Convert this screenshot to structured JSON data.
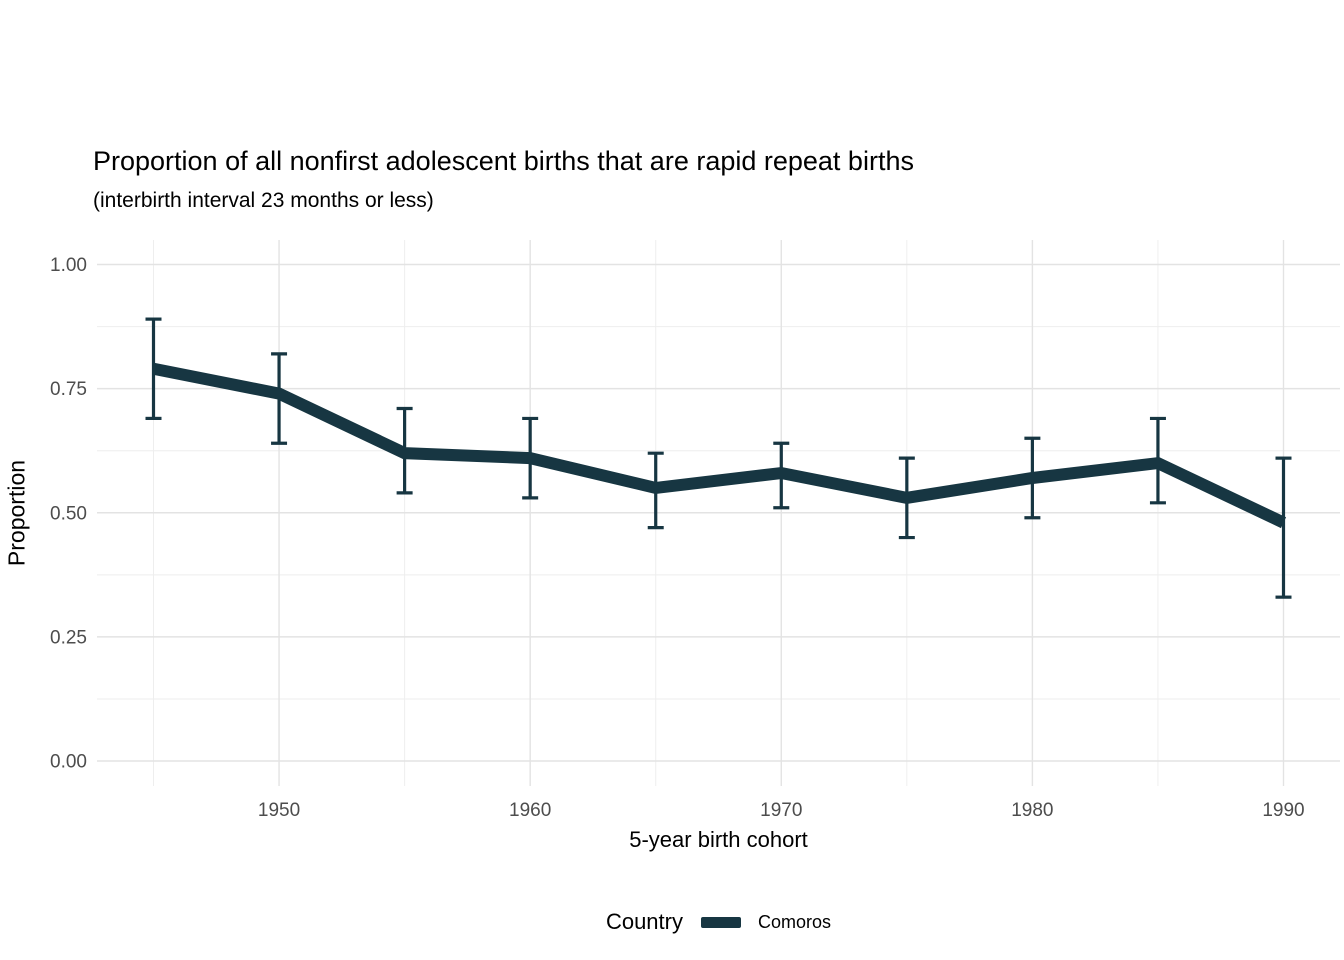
{
  "chart": {
    "kind": "line-chart-with-error-bars"
  },
  "legend": {
    "title": "Country",
    "position": "bottom",
    "items": [
      {
        "label": "Comoros",
        "color": "#173642",
        "swatch": "line"
      }
    ]
  },
  "chart_data": {
    "type": "line",
    "title": "Proportion of all nonfirst adolescent births that are rapid repeat births",
    "subtitle": "(interbirth interval 23 months or less)",
    "xlabel": "5-year birth cohort",
    "ylabel": "Proportion",
    "series": [
      {
        "name": "Comoros",
        "color": "#173642",
        "x": [
          1945,
          1950,
          1955,
          1960,
          1965,
          1970,
          1975,
          1980,
          1985,
          1990
        ],
        "values": [
          0.79,
          0.74,
          0.62,
          0.61,
          0.55,
          0.58,
          0.53,
          0.57,
          0.6,
          0.48
        ],
        "ci_low": [
          0.69,
          0.64,
          0.54,
          0.53,
          0.47,
          0.51,
          0.45,
          0.49,
          0.52,
          0.33
        ],
        "ci_high": [
          0.89,
          0.82,
          0.71,
          0.69,
          0.62,
          0.64,
          0.61,
          0.65,
          0.69,
          0.61
        ]
      }
    ],
    "error_bars": true,
    "x_ticks": [
      1950,
      1960,
      1970,
      1980,
      1990
    ],
    "y_ticks": [
      0,
      0.25,
      0.5,
      0.75,
      1
    ],
    "y_tick_labels": [
      "0.00",
      "0.25",
      "0.50",
      "0.75",
      "1.00"
    ],
    "xlim": [
      1942.75,
      1992.25
    ],
    "ylim": [
      -0.05,
      1.05
    ],
    "grid": "major+minor",
    "legend_position": "bottom",
    "colors": {
      "line": "#173642",
      "grid_major": "#e3e3e3",
      "grid_minor": "#eeeeee",
      "tick_label": "#4d4d4d",
      "text": "#000000"
    }
  }
}
